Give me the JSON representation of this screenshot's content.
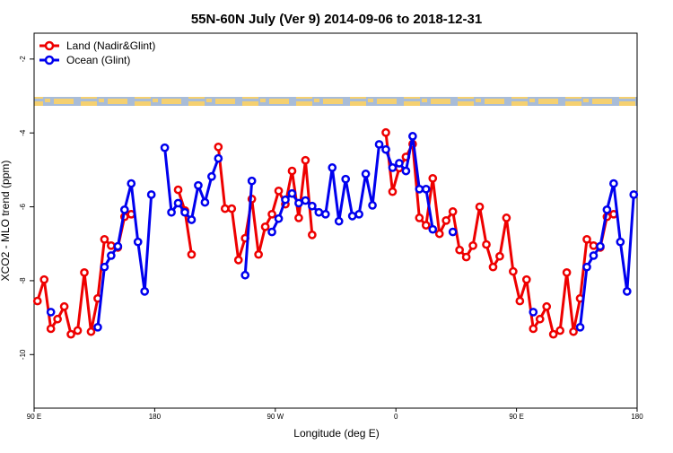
{
  "chart_data": {
    "type": "line",
    "title": "55N-60N July (Ver 9)   2014-09-06 to 2018-12-31",
    "x_label": "Longitude (deg E)",
    "y_label": "XCO2 - MLO trend (ppm)",
    "x": [
      92.5,
      97.5,
      102.5,
      107.5,
      112.5,
      117.5,
      122.5,
      127.5,
      132.5,
      137.5,
      142.5,
      147.5,
      152.5,
      157.5,
      162.5,
      167.5,
      172.5,
      177.5,
      182.5,
      187.5,
      192.5,
      197.5,
      202.5,
      207.5,
      212.5,
      217.5,
      222.5,
      227.5,
      232.5,
      237.5,
      242.5,
      247.5,
      252.5,
      257.5,
      262.5,
      267.5,
      272.5,
      277.5,
      282.5,
      287.5,
      292.5,
      297.5,
      302.5,
      307.5,
      312.5,
      317.5,
      322.5,
      327.5,
      332.5,
      337.5,
      342.5,
      347.5,
      352.5,
      357.5,
      362.5,
      367.5,
      372.5,
      377.5,
      382.5,
      387.5,
      392.5,
      397.5,
      402.5,
      407.5,
      412.5,
      417.5,
      422.5,
      427.5,
      432.5,
      437.5,
      442.5,
      447.5,
      452.5,
      457.5,
      462.5,
      467.5,
      472.5,
      477.5,
      482.5,
      487.5,
      492.5,
      497.5,
      502.5,
      507.5,
      512.5,
      517.5,
      522.5,
      527.5,
      532.5,
      537.5
    ],
    "series": [
      {
        "name": "Land (Nadir&Glint)",
        "color": "#ee0000",
        "values": [
          -8.55,
          -7.97,
          -9.3,
          -9.04,
          -8.7,
          -9.45,
          -9.35,
          -7.78,
          -9.38,
          -8.48,
          -6.88,
          -7.05,
          -7.1,
          -6.27,
          -6.2,
          null,
          null,
          null,
          null,
          null,
          null,
          -5.54,
          -6.1,
          -7.29,
          null,
          null,
          null,
          -4.38,
          -6.05,
          -6.05,
          -7.44,
          -6.85,
          -5.79,
          -7.29,
          -6.54,
          -6.2,
          -5.57,
          -5.93,
          -5.03,
          -6.3,
          -4.74,
          -6.76,
          null,
          null,
          null,
          null,
          null,
          null,
          null,
          null,
          null,
          null,
          -3.99,
          -5.59,
          -4.95,
          -4.65,
          -4.3,
          -6.3,
          -6.5,
          -5.23,
          -6.73,
          -6.37,
          -6.13,
          -7.17,
          -7.36,
          -7.05,
          -6.0,
          -7.02,
          -7.63,
          -7.34,
          -6.3,
          -7.75,
          -8.55,
          -7.97,
          -9.3,
          -9.04,
          -8.7,
          -9.45,
          -9.35,
          -7.78,
          -9.38,
          -8.48,
          -6.88,
          -7.05,
          -7.1,
          -6.27,
          -6.2,
          null,
          null,
          null
        ]
      },
      {
        "name": "Ocean (Glint)",
        "color": "#0000ee",
        "values": [
          null,
          null,
          -8.85,
          null,
          null,
          null,
          null,
          null,
          null,
          -9.26,
          -7.63,
          -7.32,
          -7.07,
          -6.08,
          -5.37,
          -6.95,
          -8.29,
          -5.67,
          null,
          -4.4,
          -6.15,
          -5.9,
          -6.15,
          -6.35,
          -5.42,
          -5.88,
          -5.18,
          -4.69,
          null,
          null,
          null,
          -7.85,
          -5.3,
          null,
          null,
          -6.68,
          -6.32,
          -5.81,
          -5.64,
          -5.9,
          -5.83,
          -5.98,
          -6.15,
          -6.2,
          -4.94,
          -6.39,
          -5.25,
          -6.25,
          -6.2,
          -5.11,
          -5.96,
          -4.31,
          -4.45,
          -4.94,
          -4.82,
          -5.03,
          -4.09,
          -5.52,
          -5.52,
          -6.61,
          null,
          null,
          -6.68,
          null,
          null,
          null,
          null,
          null,
          null,
          null,
          null,
          null,
          null,
          null,
          -8.85,
          null,
          null,
          null,
          null,
          null,
          null,
          -9.26,
          -7.63,
          -7.32,
          -7.07,
          -6.08,
          -5.37,
          -6.95,
          -8.29,
          -5.67
        ]
      }
    ],
    "xlim": [
      90,
      540
    ],
    "xticks": [
      {
        "value": 90,
        "label": "90 E"
      },
      {
        "value": 180,
        "label": "180"
      },
      {
        "value": 270,
        "label": "90 W"
      },
      {
        "value": 360,
        "label": "0"
      },
      {
        "value": 450,
        "label": "90 E"
      },
      {
        "value": 540,
        "label": "180"
      }
    ],
    "ylim": [
      -11.45,
      -1.3
    ],
    "yticks": [
      -2,
      -4,
      -6,
      -8,
      -10
    ],
    "legend": "top-left"
  }
}
